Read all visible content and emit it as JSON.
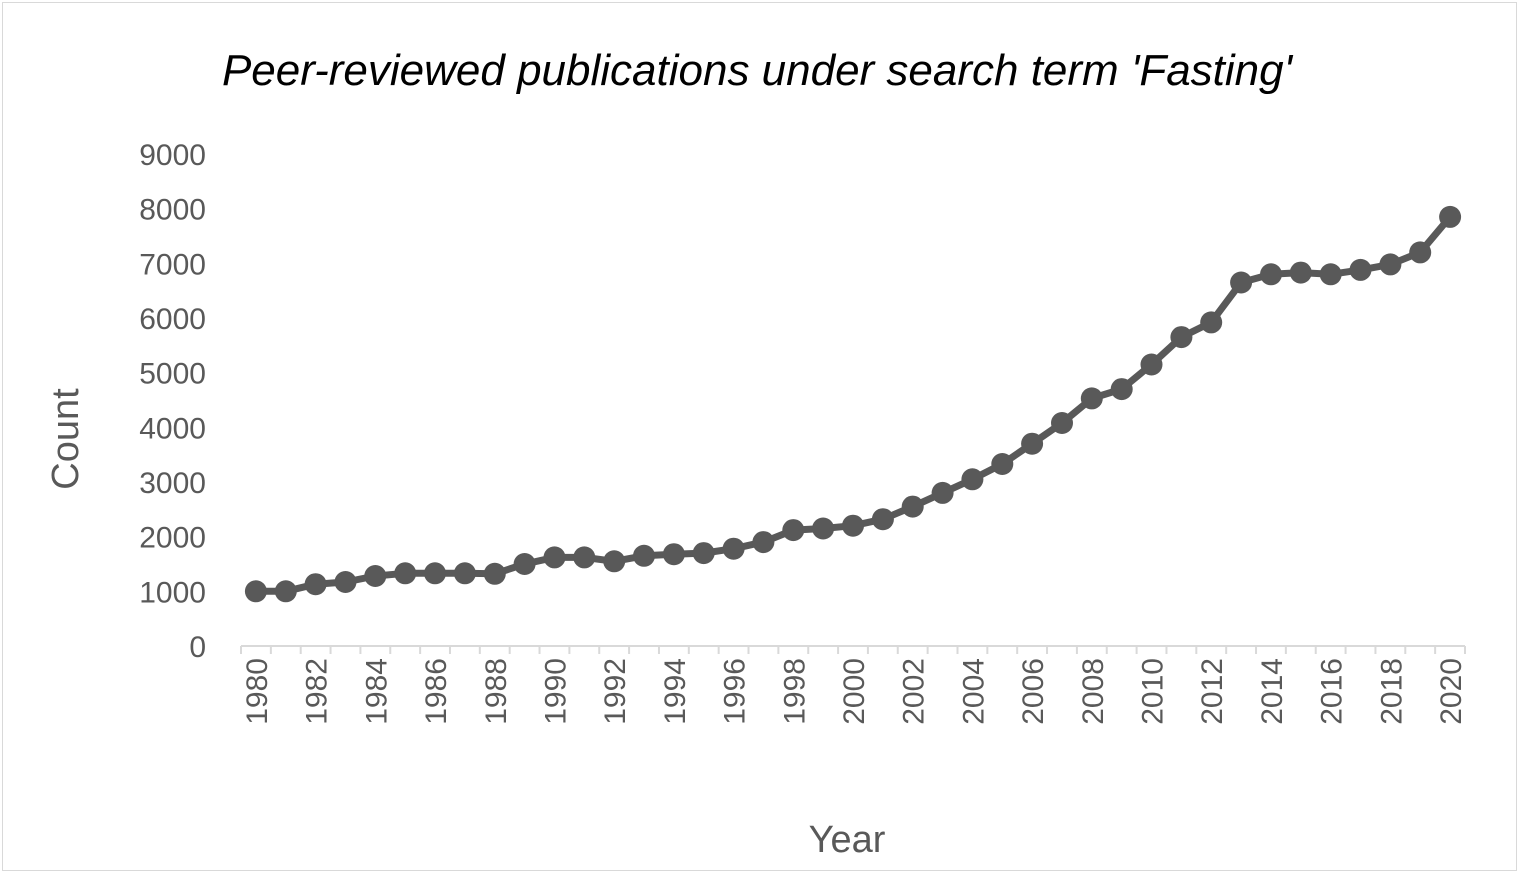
{
  "chart_data": {
    "type": "line",
    "title": "Peer-reviewed publications under search term 'Fasting'",
    "xlabel": "Year",
    "ylabel": "Count",
    "ylim": [
      0,
      9000
    ],
    "yticks": [
      "0",
      "1000",
      "2000",
      "3000",
      "4000",
      "5000",
      "6000",
      "7000",
      "8000",
      "9000"
    ],
    "xtick_labels": [
      "1980",
      "1982",
      "1984",
      "1986",
      "1988",
      "1990",
      "1992",
      "1994",
      "1996",
      "1998",
      "2000",
      "2002",
      "2004",
      "2006",
      "2008",
      "2010",
      "2012",
      "2014",
      "2016",
      "2018",
      "2020"
    ],
    "grid": false,
    "legend": "none",
    "series": [
      {
        "x": [
          1980,
          1981,
          1982,
          1983,
          1984,
          1985,
          1986,
          1987,
          1988,
          1989,
          1990,
          1991,
          1992,
          1993,
          1994,
          1995,
          1996,
          1997,
          1998,
          1999,
          2000,
          2001,
          2002,
          2003,
          2004,
          2005,
          2006,
          2007,
          2008,
          2009,
          2010,
          2011,
          2012,
          2013,
          2014,
          2015,
          2016,
          2017,
          2018,
          2019,
          2020
        ],
        "values": [
          1000,
          1000,
          1130,
          1170,
          1280,
          1330,
          1330,
          1330,
          1320,
          1500,
          1620,
          1620,
          1550,
          1650,
          1680,
          1700,
          1780,
          1900,
          2120,
          2150,
          2200,
          2320,
          2550,
          2800,
          3050,
          3330,
          3700,
          4080,
          4530,
          4700,
          5150,
          5650,
          5920,
          6650,
          6800,
          6830,
          6800,
          6880,
          6980,
          7200,
          7850
        ],
        "color": "#595959"
      }
    ]
  }
}
